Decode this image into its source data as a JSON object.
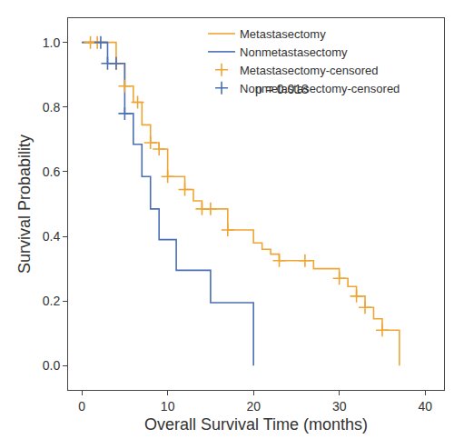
{
  "chart_data": {
    "type": "line",
    "x_label": "Overall Survival Time (months)",
    "y_label": "Survival Probability",
    "annotation": "p = 0.018",
    "xlim": [
      -1.6,
      42.2
    ],
    "xticks": [
      0,
      10,
      20,
      30,
      40
    ],
    "ylim": [
      -0.075,
      1.075
    ],
    "yticks": [
      {
        "value": 0,
        "label": "0.0"
      },
      {
        "value": 0.2,
        "label": "0.2"
      },
      {
        "value": 0.4,
        "label": "0.4"
      },
      {
        "value": 0.6,
        "label": "0.6"
      },
      {
        "value": 0.8,
        "label": "0.8"
      },
      {
        "value": 1.0,
        "label": "1.0"
      }
    ],
    "grid": false,
    "legend": "top",
    "series": [
      {
        "name": "Metastasectomy",
        "color": "#EFA534",
        "type": "line",
        "line_style": "step",
        "x": [
          0,
          4,
          5,
          6,
          7,
          8,
          9,
          10,
          12,
          13,
          14,
          17,
          20,
          21,
          22,
          23,
          27,
          30,
          31,
          32,
          33,
          34,
          35,
          37
        ],
        "values": [
          1.0,
          0.935,
          0.865,
          0.815,
          0.745,
          0.69,
          0.67,
          0.585,
          0.545,
          0.51,
          0.485,
          0.42,
          0.38,
          0.36,
          0.345,
          0.325,
          0.3,
          0.27,
          0.245,
          0.215,
          0.18,
          0.145,
          0.11,
          0.0
        ]
      },
      {
        "name": "Nonmetastasectomy",
        "color": "#4A6FB5",
        "type": "line",
        "line_style": "step",
        "x": [
          0,
          3,
          5,
          6,
          7,
          8,
          9,
          11,
          15,
          20
        ],
        "values": [
          1.0,
          0.935,
          0.78,
          0.685,
          0.585,
          0.485,
          0.39,
          0.295,
          0.195,
          0.0
        ]
      },
      {
        "name": "Metastasectomy-censored",
        "color": "#EFA534",
        "type": "scatter",
        "marker": "cross",
        "x": [
          1,
          1.8,
          4,
          5,
          6.5,
          8,
          9,
          10,
          12,
          14,
          15,
          17,
          23,
          26,
          30,
          32,
          33,
          35
        ],
        "values": [
          1.0,
          1.0,
          0.935,
          0.865,
          0.815,
          0.69,
          0.67,
          0.585,
          0.545,
          0.485,
          0.485,
          0.42,
          0.325,
          0.325,
          0.27,
          0.215,
          0.18,
          0.11
        ]
      },
      {
        "name": "Nonmetastasectomy-censored",
        "color": "#4A6FB5",
        "type": "scatter",
        "marker": "cross",
        "x": [
          2.2,
          3,
          4,
          5
        ],
        "values": [
          1.0,
          0.935,
          0.935,
          0.78
        ]
      }
    ]
  }
}
